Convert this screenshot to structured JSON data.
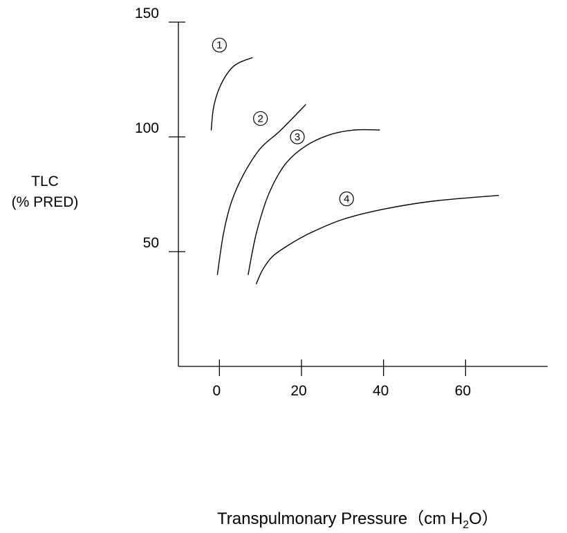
{
  "chart_data": {
    "type": "line",
    "title": "",
    "ylabel_lines": [
      "TLC",
      "(% PRED)"
    ],
    "xlabel": {
      "prefix": "Transpulmonary Pressure（cm H",
      "subscript": "2",
      "suffix": "O）"
    },
    "xlim": [
      -10,
      80
    ],
    "ylim": [
      0,
      150
    ],
    "x_ticks": [
      0,
      20,
      40,
      60
    ],
    "x_tick_labels": [
      "0",
      "20",
      "40",
      "60"
    ],
    "y_ticks": [
      50,
      100,
      150
    ],
    "y_tick_labels": [
      "50",
      "100",
      "150"
    ],
    "grid": false,
    "legend": "none",
    "line_color": "#000000",
    "series": [
      {
        "label": "1",
        "label_position": [
          0,
          140
        ],
        "points": [
          [
            -2,
            103
          ],
          [
            -1.5,
            112
          ],
          [
            -0.5,
            119
          ],
          [
            1,
            125
          ],
          [
            3,
            130
          ],
          [
            5,
            132.5
          ],
          [
            8,
            134.5
          ]
        ]
      },
      {
        "label": "2",
        "label_position": [
          10,
          108
        ],
        "points": [
          [
            -0.5,
            40
          ],
          [
            1,
            58
          ],
          [
            3,
            72
          ],
          [
            6,
            84
          ],
          [
            10,
            95
          ],
          [
            15,
            103
          ],
          [
            21,
            114
          ]
        ]
      },
      {
        "label": "3",
        "label_position": [
          19,
          100
        ],
        "points": [
          [
            7,
            40
          ],
          [
            9,
            58
          ],
          [
            12,
            75
          ],
          [
            16,
            88
          ],
          [
            21,
            96
          ],
          [
            27,
            101
          ],
          [
            33,
            103
          ],
          [
            39,
            103
          ]
        ]
      },
      {
        "label": "4",
        "label_position": [
          31,
          73
        ],
        "points": [
          [
            9,
            36
          ],
          [
            10.5,
            42
          ],
          [
            13,
            48
          ],
          [
            17,
            53
          ],
          [
            22,
            58
          ],
          [
            30,
            64
          ],
          [
            40,
            68.5
          ],
          [
            52,
            72
          ],
          [
            68,
            74.5
          ]
        ]
      }
    ]
  }
}
